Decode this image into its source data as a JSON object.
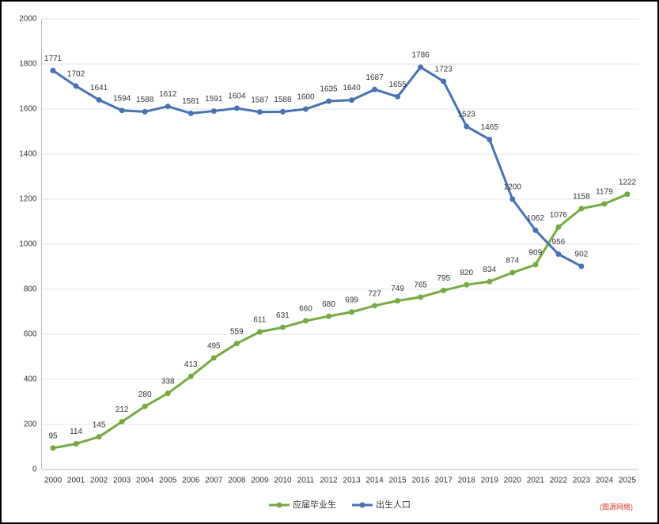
{
  "chart_data": {
    "type": "line",
    "categories": [
      "2000",
      "2001",
      "2002",
      "2003",
      "2004",
      "2005",
      "2006",
      "2007",
      "2008",
      "2009",
      "2010",
      "2011",
      "2012",
      "2013",
      "2014",
      "2015",
      "2016",
      "2017",
      "2018",
      "2019",
      "2020",
      "2021",
      "2022",
      "2023",
      "2024",
      "2025"
    ],
    "series": [
      {
        "name": "应届毕业生",
        "color": "#77a844",
        "values": [
          95,
          114,
          145,
          212,
          280,
          338,
          413,
          495,
          559,
          611,
          631,
          660,
          680,
          699,
          727,
          749,
          765,
          795,
          820,
          834,
          874,
          909,
          1076,
          1158,
          1179,
          1222
        ]
      },
      {
        "name": "出生人口",
        "color": "#4a72b0",
        "values": [
          1771,
          1702,
          1641,
          1594,
          1588,
          1612,
          1581,
          1591,
          1604,
          1587,
          1588,
          1600,
          1635,
          1640,
          1687,
          1655,
          1786,
          1723,
          1523,
          1465,
          1200,
          1062,
          956,
          902,
          null,
          null
        ]
      }
    ],
    "ylim": [
      0,
      2000
    ],
    "yticks": [
      0,
      200,
      400,
      600,
      800,
      1000,
      1200,
      1400,
      1600,
      1800,
      2000
    ],
    "grid": true,
    "legend": "bottom",
    "source": "(图源网络)"
  }
}
